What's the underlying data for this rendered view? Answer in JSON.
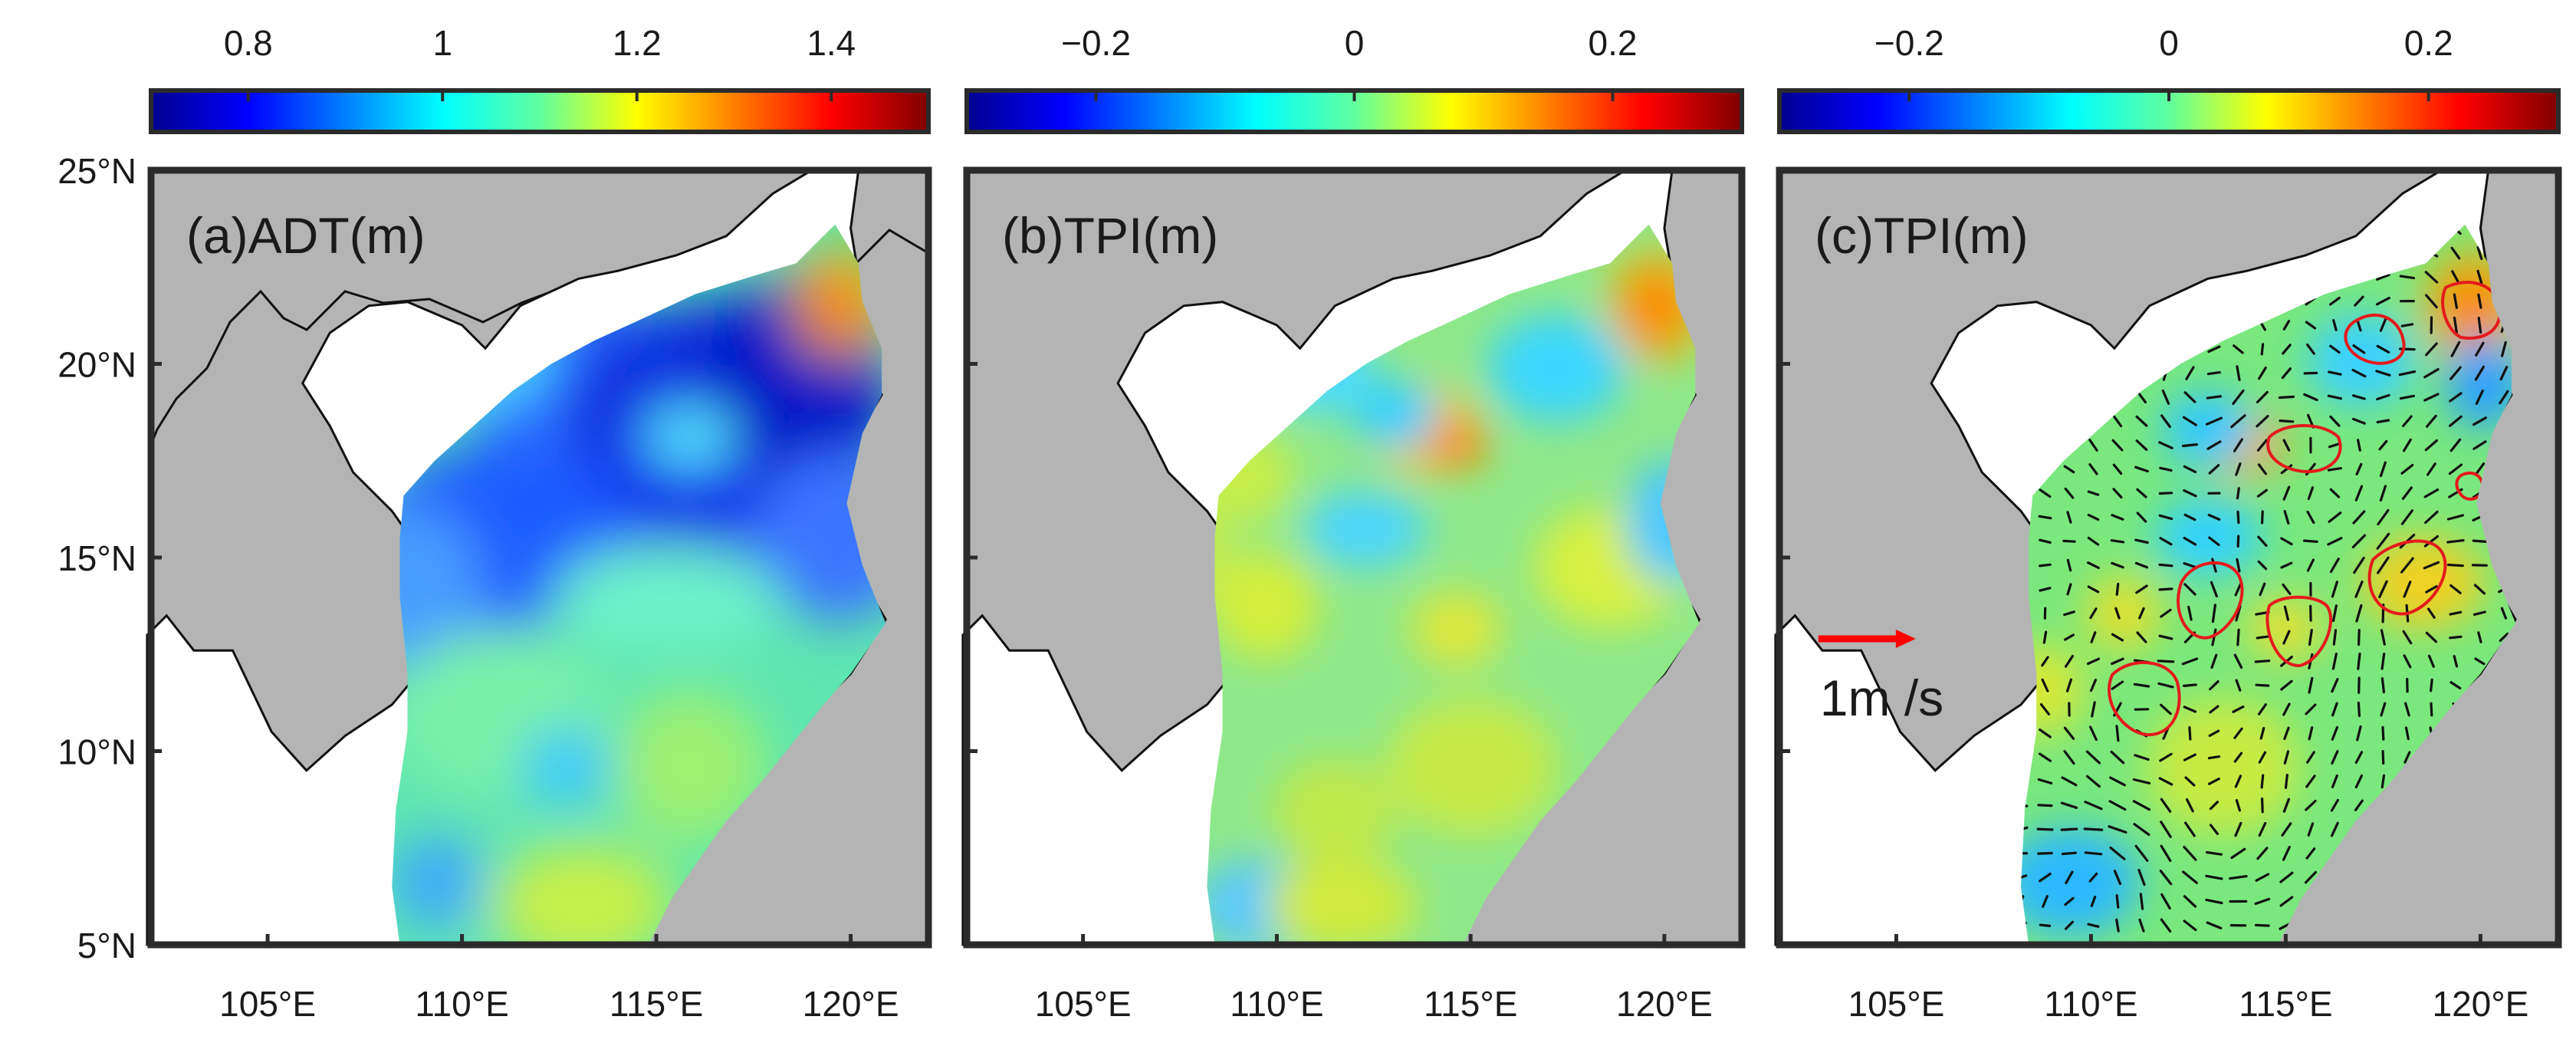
{
  "figure": {
    "axes": {
      "lat_ticks": [
        "25°N",
        "20°N",
        "15°N",
        "10°N",
        "5°N"
      ],
      "lon_ticks": [
        "105°E",
        "110°E",
        "115°E",
        "120°E"
      ],
      "lat_range": [
        5,
        25
      ],
      "lon_range": [
        102,
        122
      ],
      "lat_values": [
        25,
        20,
        15,
        10,
        5
      ],
      "lon_values": [
        105,
        110,
        115,
        120
      ]
    },
    "colors": {
      "land": "#b4b4b4",
      "coast_line": "#111111",
      "frame": "#2b2b2b",
      "contour": "#e41a1c",
      "vector_arrows": "#111111",
      "scale_arrow": "#ff0000"
    },
    "panels": [
      {
        "id": "a",
        "title": "(a)ADT(m)",
        "colorbar": {
          "min": 0.7,
          "max": 1.5,
          "ticks": [
            0.8,
            1,
            1.2,
            1.4
          ],
          "tick_labels": [
            "0.8",
            "1",
            "1.2",
            "1.4"
          ]
        },
        "show_vectors": false
      },
      {
        "id": "b",
        "title": "(b)TPI(m)",
        "colorbar": {
          "min": -0.3,
          "max": 0.3,
          "ticks": [
            -0.2,
            0,
            0.2
          ],
          "tick_labels": [
            "−0.2",
            "0",
            "0.2"
          ]
        },
        "show_vectors": false
      },
      {
        "id": "c",
        "title": "(c)TPI(m)",
        "colorbar": {
          "min": -0.3,
          "max": 0.3,
          "ticks": [
            -0.2,
            0,
            0.2
          ],
          "tick_labels": [
            "−0.2",
            "0",
            "0.2"
          ]
        },
        "show_vectors": true,
        "scale": {
          "label": "1m /s",
          "arrow_lon": [
            103,
            105.5
          ],
          "arrow_lat": 12.9
        }
      }
    ]
  }
}
